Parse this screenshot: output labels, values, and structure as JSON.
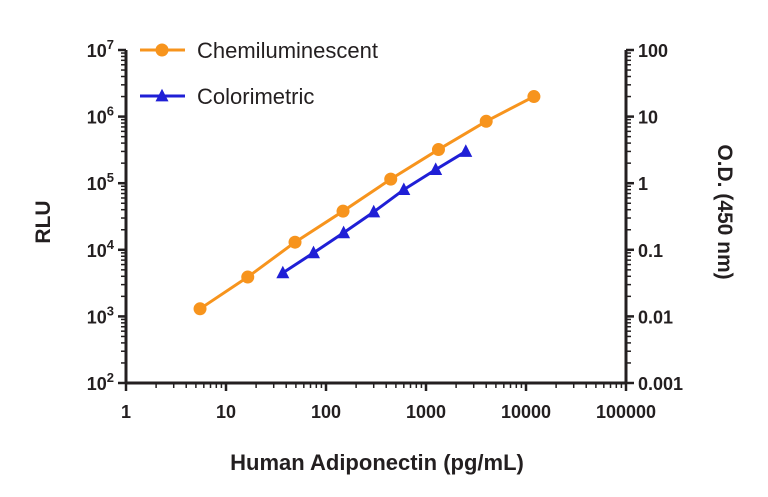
{
  "chart_data": {
    "type": "line",
    "xlabel": "Human Adiponectin (pg/mL)",
    "ylabel": "RLU",
    "y2label": "O.D. (450 nm)",
    "xscale": "log",
    "yscale": "log",
    "y2scale": "log",
    "xlim": [
      1,
      100000
    ],
    "ylim": [
      100,
      10000000
    ],
    "y2lim": [
      0.001,
      100
    ],
    "x_ticks": [
      1,
      10,
      100,
      1000,
      10000,
      100000
    ],
    "x_tick_labels": [
      "1",
      "10",
      "100",
      "1000",
      "10000",
      "100000"
    ],
    "y_ticks": [
      100,
      1000,
      10000,
      100000,
      1000000,
      10000000
    ],
    "y_tick_labels": [
      {
        "base": "10",
        "exp": "2"
      },
      {
        "base": "10",
        "exp": "3"
      },
      {
        "base": "10",
        "exp": "4"
      },
      {
        "base": "10",
        "exp": "5"
      },
      {
        "base": "10",
        "exp": "6"
      },
      {
        "base": "10",
        "exp": "7"
      }
    ],
    "y2_ticks": [
      0.001,
      0.01,
      0.1,
      1,
      10,
      100
    ],
    "y2_tick_labels": [
      "0.001",
      "0.01",
      "0.1",
      "1",
      "10",
      "100"
    ],
    "grid": false,
    "legend_position": "top-left",
    "series": [
      {
        "name": "Chemiluminescent",
        "axis": "left",
        "color": "#f7941d",
        "marker": "circle",
        "x": [
          5.5,
          16.5,
          49,
          148,
          444,
          1333,
          4000,
          12000
        ],
        "y": [
          1300,
          3900,
          13000,
          38000,
          115000,
          320000,
          850000,
          2000000
        ]
      },
      {
        "name": "Colorimetric",
        "axis": "right",
        "color": "#1f1fd6",
        "marker": "triangle",
        "x": [
          37,
          75,
          150,
          300,
          600,
          1250,
          2500
        ],
        "y": [
          0.045,
          0.09,
          0.18,
          0.37,
          0.8,
          1.6,
          3.0
        ]
      }
    ]
  }
}
